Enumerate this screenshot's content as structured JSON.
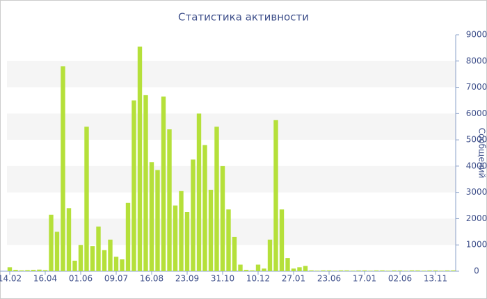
{
  "chart_data": {
    "type": "bar",
    "title": "Статистика активности",
    "y_label": "Сообщений",
    "categories": [
      "14.02",
      null,
      null,
      null,
      null,
      null,
      "16.04",
      null,
      null,
      null,
      null,
      null,
      "01.06",
      null,
      null,
      null,
      null,
      null,
      "09.07",
      null,
      null,
      null,
      null,
      null,
      "16.08",
      null,
      null,
      null,
      null,
      null,
      "23.09",
      null,
      null,
      null,
      null,
      null,
      "31.10",
      null,
      null,
      null,
      null,
      null,
      "10.12",
      null,
      null,
      null,
      null,
      null,
      "27.01",
      null,
      null,
      null,
      null,
      null,
      "23.06",
      null,
      null,
      null,
      null,
      null,
      "17.01",
      null,
      null,
      null,
      null,
      null,
      "02.06",
      null,
      null,
      null,
      null,
      null,
      "13.11",
      null,
      null,
      null
    ],
    "values": [
      150,
      50,
      30,
      40,
      50,
      60,
      40,
      2150,
      1500,
      7800,
      2400,
      400,
      1000,
      5500,
      950,
      1700,
      800,
      1200,
      550,
      450,
      2600,
      6500,
      8550,
      6700,
      4150,
      3850,
      6650,
      5400,
      2500,
      3050,
      2250,
      4250,
      6000,
      4800,
      3100,
      5500,
      4000,
      2350,
      1300,
      250,
      50,
      30,
      250,
      100,
      1200,
      5750,
      2350,
      500,
      100,
      150,
      200,
      30,
      20,
      30,
      30,
      20,
      30,
      30,
      20,
      30,
      30,
      20,
      30,
      30,
      20,
      30,
      30,
      20,
      30,
      30,
      20,
      30,
      30,
      20,
      30,
      30
    ],
    "color": "#b5e03a",
    "ylim": [
      0,
      9000
    ],
    "yticks": [
      0,
      1000,
      2000,
      3000,
      4000,
      5000,
      6000,
      7000,
      8000,
      9000
    ],
    "grid": "bands",
    "band_color": "#f5f5f5"
  }
}
